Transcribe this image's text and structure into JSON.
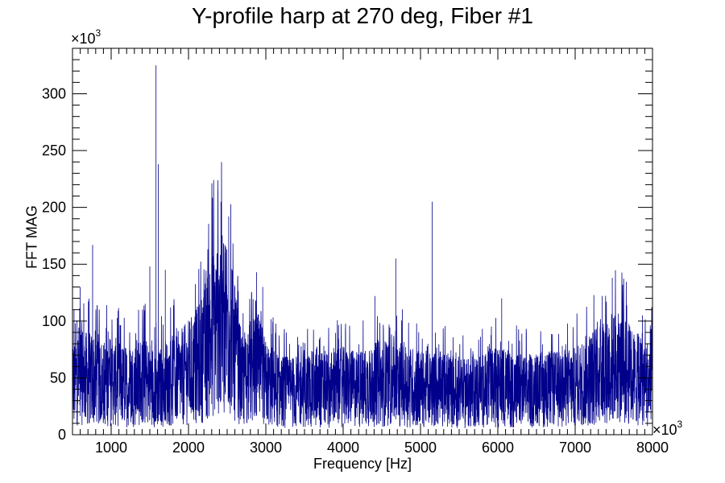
{
  "chart_data": {
    "type": "line",
    "title": "Y-profile harp at 270 deg, Fiber #1",
    "xlabel": "Frequency [Hz]",
    "ylabel": "FFT MAG",
    "x_multiplier": "×10",
    "x_multiplier_exp": "3",
    "y_multiplier": "×10",
    "y_multiplier_exp": "3",
    "xlim": [
      500,
      8000
    ],
    "ylim": [
      0,
      340
    ],
    "x_ticks": [
      1000,
      2000,
      3000,
      4000,
      5000,
      6000,
      7000,
      8000
    ],
    "y_ticks": [
      0,
      50,
      100,
      150,
      200,
      250,
      300
    ],
    "grid": false,
    "color": "#00008b",
    "envelope": [
      [
        500,
        45
      ],
      [
        600,
        55
      ],
      [
        700,
        48
      ],
      [
        800,
        50
      ],
      [
        900,
        45
      ],
      [
        1000,
        48
      ],
      [
        1100,
        45
      ],
      [
        1200,
        42
      ],
      [
        1300,
        45
      ],
      [
        1400,
        48
      ],
      [
        1500,
        45
      ],
      [
        1600,
        40
      ],
      [
        1700,
        45
      ],
      [
        1800,
        48
      ],
      [
        1900,
        50
      ],
      [
        2000,
        55
      ],
      [
        2100,
        60
      ],
      [
        2200,
        70
      ],
      [
        2300,
        90
      ],
      [
        2400,
        100
      ],
      [
        2500,
        100
      ],
      [
        2600,
        70
      ],
      [
        2700,
        45
      ],
      [
        2800,
        55
      ],
      [
        2900,
        58
      ],
      [
        3000,
        45
      ],
      [
        3200,
        38
      ],
      [
        3400,
        38
      ],
      [
        3600,
        40
      ],
      [
        3800,
        40
      ],
      [
        4000,
        42
      ],
      [
        4200,
        40
      ],
      [
        4400,
        44
      ],
      [
        4600,
        46
      ],
      [
        4800,
        44
      ],
      [
        5000,
        40
      ],
      [
        5200,
        40
      ],
      [
        5400,
        38
      ],
      [
        5600,
        36
      ],
      [
        5800,
        40
      ],
      [
        6000,
        42
      ],
      [
        6200,
        40
      ],
      [
        6400,
        38
      ],
      [
        6600,
        40
      ],
      [
        6800,
        40
      ],
      [
        7000,
        42
      ],
      [
        7200,
        50
      ],
      [
        7400,
        60
      ],
      [
        7600,
        58
      ],
      [
        7800,
        48
      ],
      [
        8000,
        45
      ]
    ],
    "peaks": [
      [
        520,
        110
      ],
      [
        600,
        130
      ],
      [
        760,
        167
      ],
      [
        1580,
        325
      ],
      [
        1610,
        238
      ],
      [
        1500,
        148
      ],
      [
        1700,
        145
      ],
      [
        2380,
        215
      ],
      [
        2420,
        205
      ],
      [
        2520,
        192
      ],
      [
        2300,
        150
      ],
      [
        2600,
        130
      ],
      [
        2880,
        143
      ],
      [
        2960,
        130
      ],
      [
        4680,
        155
      ],
      [
        5150,
        205
      ],
      [
        4410,
        122
      ],
      [
        6050,
        120
      ],
      [
        7350,
        122
      ],
      [
        7480,
        138
      ],
      [
        7870,
        105
      ],
      [
        7980,
        93
      ]
    ]
  }
}
